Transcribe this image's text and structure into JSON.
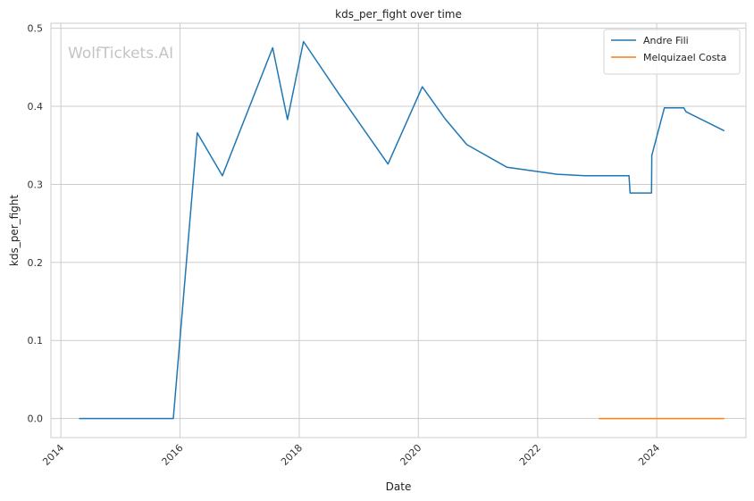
{
  "chart_data": {
    "type": "line",
    "title": "kds_per_fight over time",
    "xlabel": "Date",
    "ylabel": "kds_per_fight",
    "watermark": "WolfTickets.AI",
    "ylim": [
      -0.0245,
      0.5065
    ],
    "xlim": [
      "2013-11-01",
      "2025-07-01"
    ],
    "grid": true,
    "legend_position": "top-right",
    "x_ticks": [
      {
        "date": "2014-01-01",
        "label": "2014"
      },
      {
        "date": "2016-01-01",
        "label": "2016"
      },
      {
        "date": "2018-01-01",
        "label": "2018"
      },
      {
        "date": "2020-01-01",
        "label": "2020"
      },
      {
        "date": "2022-01-01",
        "label": "2022"
      },
      {
        "date": "2024-01-01",
        "label": "2024"
      }
    ],
    "y_ticks": [
      {
        "value": 0.0,
        "label": "0.0"
      },
      {
        "value": 0.1,
        "label": "0.1"
      },
      {
        "value": 0.2,
        "label": "0.2"
      },
      {
        "value": 0.3,
        "label": "0.3"
      },
      {
        "value": 0.4,
        "label": "0.4"
      },
      {
        "value": 0.5,
        "label": "0.5"
      }
    ],
    "series": [
      {
        "name": "Andre Fili",
        "color": "#1f77b4",
        "points": [
          {
            "x": "2014-04-26",
            "y": 0.0
          },
          {
            "x": "2015-11-21",
            "y": 0.0
          },
          {
            "x": "2016-04-16",
            "y": 0.366
          },
          {
            "x": "2016-09-17",
            "y": 0.311
          },
          {
            "x": "2017-07-22",
            "y": 0.475
          },
          {
            "x": "2017-10-21",
            "y": 0.383
          },
          {
            "x": "2018-01-27",
            "y": 0.483
          },
          {
            "x": "2018-08-25",
            "y": 0.418
          },
          {
            "x": "2019-06-29",
            "y": 0.326
          },
          {
            "x": "2020-01-25",
            "y": 0.425
          },
          {
            "x": "2020-06-13",
            "y": 0.384
          },
          {
            "x": "2020-10-24",
            "y": 0.351
          },
          {
            "x": "2021-06-26",
            "y": 0.322
          },
          {
            "x": "2022-04-30",
            "y": 0.313
          },
          {
            "x": "2022-10-15",
            "y": 0.311
          },
          {
            "x": "2023-07-15",
            "y": 0.311
          },
          {
            "x": "2023-07-22",
            "y": 0.289
          },
          {
            "x": "2023-11-30",
            "y": 0.289
          },
          {
            "x": "2023-12-02",
            "y": 0.337
          },
          {
            "x": "2024-02-17",
            "y": 0.398
          },
          {
            "x": "2024-06-15",
            "y": 0.398
          },
          {
            "x": "2024-06-29",
            "y": 0.393
          },
          {
            "x": "2025-02-15",
            "y": 0.369
          }
        ]
      },
      {
        "name": "Melquizael Costa",
        "color": "#ff7f0e",
        "points": [
          {
            "x": "2023-01-14",
            "y": 0.0
          },
          {
            "x": "2025-02-15",
            "y": 0.0
          }
        ]
      }
    ]
  }
}
